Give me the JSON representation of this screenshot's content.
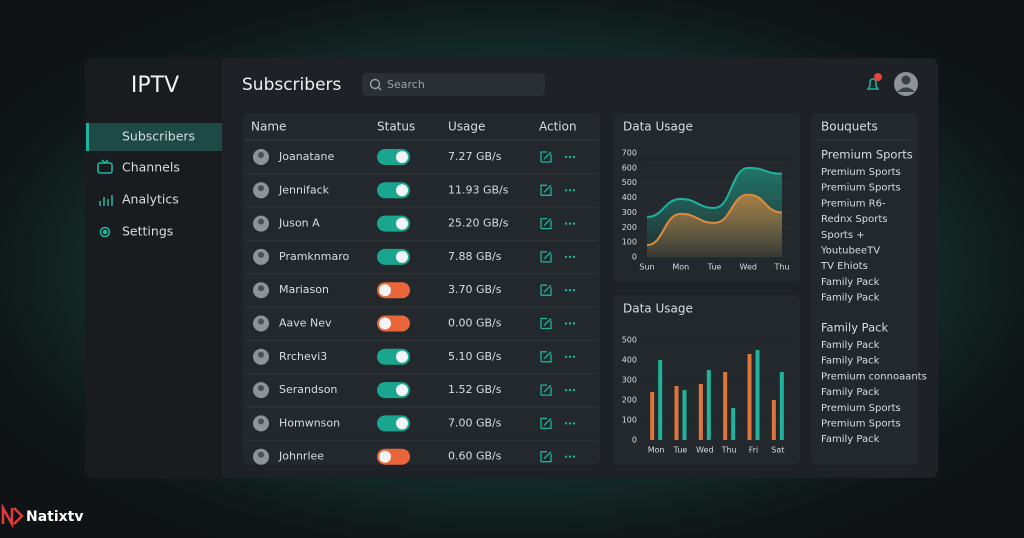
{
  "sidebar": {
    "logo": "IPTV",
    "nav": [
      {
        "label": "Subscribers",
        "active": true
      },
      {
        "label": "Channels",
        "active": false
      },
      {
        "label": "Analytics",
        "active": false
      },
      {
        "label": "Settings",
        "active": false
      }
    ]
  },
  "header": {
    "title": "Subscribers",
    "search_placeholder": "Search"
  },
  "table": {
    "columns": [
      "Name",
      "Status",
      "Usage",
      "Action"
    ],
    "rows": [
      {
        "name": "Joanatane",
        "status": "on",
        "usage": "7.27 GB/s"
      },
      {
        "name": "Jennifack",
        "status": "on",
        "usage": "11.93 GB/s"
      },
      {
        "name": "Juson A",
        "status": "on",
        "usage": "25.20 GB/s"
      },
      {
        "name": "Pramknmaro",
        "status": "on",
        "usage": "7.88 GB/s"
      },
      {
        "name": "Mariason",
        "status": "off",
        "usage": "3.70 GB/s"
      },
      {
        "name": "Aave Nev",
        "status": "off",
        "usage": "0.00 GB/s"
      },
      {
        "name": "Rrchevi3",
        "status": "on",
        "usage": "5.10 GB/s"
      },
      {
        "name": "Serandson",
        "status": "on",
        "usage": "1.52 GB/s"
      },
      {
        "name": "Homwnson",
        "status": "on",
        "usage": "7.00 GB/s"
      },
      {
        "name": "Johnrlee",
        "status": "off",
        "usage": "0.60 GB/s"
      }
    ]
  },
  "usage_chart": {
    "type": "area",
    "title": "Data Usage",
    "categories": [
      "Sun",
      "Mon",
      "Tue",
      "Wed",
      "Thu"
    ],
    "ylim": [
      0,
      700
    ],
    "yticks": [
      0,
      100,
      200,
      300,
      400,
      500,
      600,
      700
    ],
    "series": [
      {
        "color": "#1fb39b",
        "values": [
          270,
          390,
          330,
          600,
          560
        ]
      },
      {
        "color": "#e08a3c",
        "values": [
          80,
          290,
          230,
          420,
          300
        ]
      }
    ]
  },
  "bar_chart": {
    "type": "bar",
    "title": "Data Usage",
    "categories": [
      "Mon",
      "Tue",
      "Wed",
      "Thu",
      "Fri",
      "Sat"
    ],
    "ylim": [
      0,
      500
    ],
    "yticks": [
      0,
      100,
      200,
      300,
      400,
      500
    ],
    "series": [
      {
        "color": "#e0763a",
        "values": [
          240,
          270,
          280,
          340,
          430,
          200
        ]
      },
      {
        "color": "#1fb39b",
        "values": [
          400,
          250,
          350,
          160,
          450,
          340
        ]
      }
    ]
  },
  "bouquets": {
    "title": "Bouquets",
    "groups": [
      {
        "heading": "Premium Sports",
        "items": [
          "Premium Sports",
          "Premium Sports",
          "Premium R6-",
          "Rednx Sports",
          "Sports +",
          "YoutubeeTV",
          "TV Ehiots",
          "Family Pack",
          "Family Pack"
        ]
      },
      {
        "heading": "Family Pack",
        "items": [
          "Family Pack",
          "Family Pack",
          "Premium connoaants",
          "Family Pack",
          "Premium Sports",
          "Premium Sports",
          "Family Pack"
        ]
      }
    ]
  },
  "watermark": "Natixtv"
}
